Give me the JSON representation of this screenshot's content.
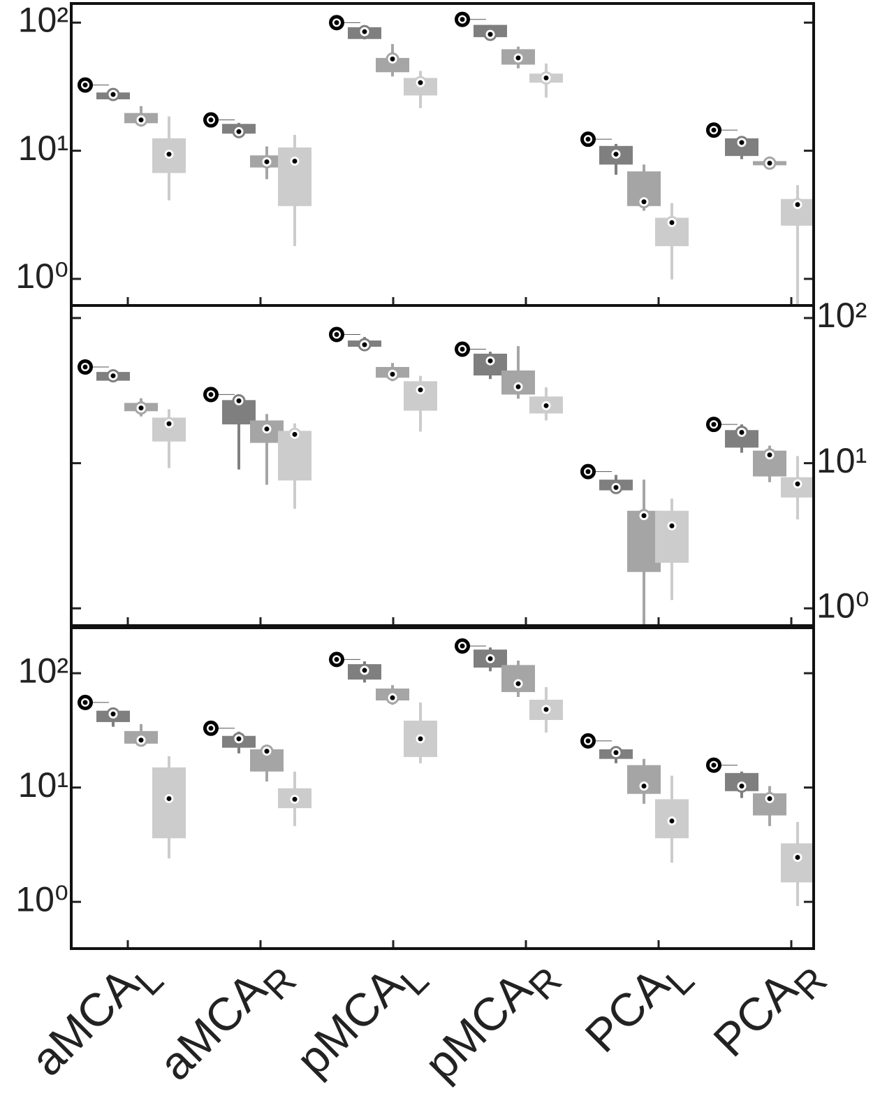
{
  "chart_data": [
    {
      "type": "box",
      "yscale": "log",
      "ylim": [
        0.62,
        141
      ],
      "yticks": [
        {
          "value": 1,
          "label": "10⁰"
        },
        {
          "value": 10,
          "label": "10¹"
        },
        {
          "value": 100,
          "label": "10²"
        }
      ],
      "yaxis_location": "left",
      "series": [
        {
          "color": "#000000",
          "values": [
            32.6,
            17.4,
            100,
            106,
            12.3,
            14.5
          ]
        },
        {
          "color": "#7f7f7f",
          "values": [
            {
              "min": 25,
              "q1": 25.2,
              "median": 27.5,
              "q3": 28.5,
              "max": 29
            },
            {
              "min": 13.5,
              "q1": 13.6,
              "median": 14.1,
              "q3": 16.2,
              "max": 16.5
            },
            {
              "min": 74,
              "q1": 74.5,
              "median": 85,
              "q3": 92,
              "max": 95
            },
            {
              "min": 77,
              "q1": 77,
              "median": 81,
              "q3": 96,
              "max": 96
            },
            {
              "min": 6.5,
              "q1": 7.8,
              "median": 9.4,
              "q3": 10.9,
              "max": 11.3
            },
            {
              "min": 8.6,
              "q1": 9.1,
              "median": 11.6,
              "q3": 12.5,
              "max": 12.9
            }
          ]
        },
        {
          "color": "#a5a5a5",
          "values": [
            {
              "min": 15.4,
              "q1": 16.4,
              "median": 17.4,
              "q3": 19.7,
              "max": 22.3
            },
            {
              "min": 6.0,
              "q1": 7.4,
              "median": 8.2,
              "q3": 9.2,
              "max": 10.8
            },
            {
              "min": 38,
              "q1": 41,
              "median": 52,
              "q3": 53,
              "max": 68
            },
            {
              "min": 44,
              "q1": 47,
              "median": 53,
              "q3": 62,
              "max": 65
            },
            {
              "min": 3.4,
              "q1": 3.7,
              "median": 4.0,
              "q3": 6.9,
              "max": 7.8
            },
            {
              "min": 7.7,
              "q1": 7.7,
              "median": 8.0,
              "q3": 8.3,
              "max": 8.3
            }
          ]
        },
        {
          "color": "#cccccc",
          "values": [
            {
              "min": 4.1,
              "q1": 6.7,
              "median": 9.4,
              "q3": 12.5,
              "max": 18.5
            },
            {
              "min": 1.8,
              "q1": 3.7,
              "median": 8.3,
              "q3": 10.6,
              "max": 13.3
            },
            {
              "min": 21.5,
              "q1": 27,
              "median": 34,
              "q3": 37,
              "max": 42
            },
            {
              "min": 26,
              "q1": 34,
              "median": 37,
              "q3": 40,
              "max": 48
            },
            {
              "min": 0.99,
              "q1": 1.8,
              "median": 2.75,
              "q3": 3.0,
              "max": 3.9
            },
            {
              "min": 0.4,
              "q1": 2.6,
              "median": 3.8,
              "q3": 4.2,
              "max": 5.4
            }
          ]
        }
      ]
    },
    {
      "type": "box",
      "yscale": "log",
      "ylim": [
        0.76,
        122
      ],
      "yticks": [
        {
          "value": 1,
          "label": "10⁰"
        },
        {
          "value": 10,
          "label": "10¹"
        },
        {
          "value": 100,
          "label": "10²"
        }
      ],
      "yaxis_location": "right",
      "series": [
        {
          "color": "#000000",
          "values": [
            46,
            29.7,
            77,
            61,
            8.75,
            18.5
          ]
        },
        {
          "color": "#7f7f7f",
          "values": [
            {
              "min": 37,
              "q1": 37,
              "median": 40,
              "q3": 42.5,
              "max": 42.5
            },
            {
              "min": 9.05,
              "q1": 18.5,
              "median": 26.9,
              "q3": 27.2,
              "max": 28.8
            },
            {
              "min": 59.3,
              "q1": 63.4,
              "median": 65.5,
              "q3": 70,
              "max": 74
            },
            {
              "min": 38,
              "q1": 40.2,
              "median": 50.7,
              "q3": 56.8,
              "max": 58.6
            },
            {
              "min": 6.2,
              "q1": 6.5,
              "median": 6.8,
              "q3": 7.7,
              "max": 8.3
            },
            {
              "min": 11.8,
              "q1": 12.8,
              "median": 16.3,
              "q3": 16.9,
              "max": 18.5
            }
          ]
        },
        {
          "color": "#a5a5a5",
          "values": [
            {
              "min": 21,
              "q1": 22.8,
              "median": 24,
              "q3": 26,
              "max": 28
            },
            {
              "min": 7.1,
              "q1": 13.8,
              "median": 17.2,
              "q3": 19.7,
              "max": 21.8
            },
            {
              "min": 36.7,
              "q1": 38.8,
              "median": 41,
              "q3": 46,
              "max": 49
            },
            {
              "min": 27.8,
              "q1": 29.7,
              "median": 33.6,
              "q3": 43.5,
              "max": 64
            },
            {
              "min": 0.5,
              "q1": 1.78,
              "median": 4.35,
              "q3": 4.7,
              "max": 7.7
            },
            {
              "min": 7.4,
              "q1": 8.1,
              "median": 11.4,
              "q3": 12.2,
              "max": 13.2
            }
          ]
        },
        {
          "color": "#cccccc",
          "values": [
            {
              "min": 9.25,
              "q1": 14.1,
              "median": 18.7,
              "q3": 20.6,
              "max": 23.5
            },
            {
              "min": 4.85,
              "q1": 7.6,
              "median": 15.8,
              "q3": 16.7,
              "max": 18.8
            },
            {
              "min": 16.5,
              "q1": 23,
              "median": 32,
              "q3": 36.7,
              "max": 40
            },
            {
              "min": 19.7,
              "q1": 22,
              "median": 24.9,
              "q3": 28.8,
              "max": 33.3
            },
            {
              "min": 1.14,
              "q1": 2.06,
              "median": 3.7,
              "q3": 4.7,
              "max": 5.7
            },
            {
              "min": 4.1,
              "q1": 5.8,
              "median": 7.2,
              "q3": 8.0,
              "max": 11.2
            }
          ]
        }
      ]
    },
    {
      "type": "box",
      "yscale": "log",
      "ylim": [
        0.39,
        250
      ],
      "yticks": [
        {
          "value": 1,
          "label": "10⁰"
        },
        {
          "value": 10,
          "label": "10¹"
        },
        {
          "value": 100,
          "label": "10²"
        }
      ],
      "yaxis_location": "left",
      "categories": [
        [
          "aMCA",
          "L"
        ],
        [
          "aMCA",
          "R"
        ],
        [
          "pMCA",
          "L"
        ],
        [
          "pMCA",
          "R"
        ],
        [
          "PCA",
          "L"
        ],
        [
          "PCA",
          "R"
        ]
      ],
      "series": [
        {
          "color": "#000000",
          "values": [
            55.5,
            33,
            132,
            173,
            25.6,
            15.7
          ]
        },
        {
          "color": "#7f7f7f",
          "values": [
            {
              "min": 34,
              "q1": 37.4,
              "median": 44,
              "q3": 47,
              "max": 49.5
            },
            {
              "min": 19.9,
              "q1": 22.3,
              "median": 26.7,
              "q3": 28.3,
              "max": 30.8
            },
            {
              "min": 83,
              "q1": 88,
              "median": 106,
              "q3": 120,
              "max": 127
            },
            {
              "min": 104,
              "q1": 112,
              "median": 134,
              "q3": 161,
              "max": 168
            },
            {
              "min": 16.3,
              "q1": 17.8,
              "median": 20.2,
              "q3": 21.6,
              "max": 22.9
            },
            {
              "min": 8.1,
              "q1": 9.3,
              "median": 10.3,
              "q3": 13.4,
              "max": 13.8
            }
          ]
        },
        {
          "color": "#a5a5a5",
          "values": [
            {
              "min": 23.5,
              "q1": 24.2,
              "median": 26,
              "q3": 31.2,
              "max": 35.9
            },
            {
              "min": 11.3,
              "q1": 13.8,
              "median": 20.8,
              "q3": 21.6,
              "max": 23.2
            },
            {
              "min": 53,
              "q1": 57.8,
              "median": 61,
              "q3": 73.5,
              "max": 78.7
            },
            {
              "min": 62,
              "q1": 68.4,
              "median": 81,
              "q3": 118,
              "max": 129
            },
            {
              "min": 7.2,
              "q1": 8.8,
              "median": 10.3,
              "q3": 15.7,
              "max": 17.8
            },
            {
              "min": 4.6,
              "q1": 5.7,
              "median": 8.0,
              "q3": 8.9,
              "max": 10.3
            }
          ]
        },
        {
          "color": "#cccccc",
          "values": [
            {
              "min": 2.4,
              "q1": 3.6,
              "median": 8.0,
              "q3": 15.0,
              "max": 18.8
            },
            {
              "min": 4.6,
              "q1": 6.6,
              "median": 7.9,
              "q3": 9.85,
              "max": 13.8
            },
            {
              "min": 16.3,
              "q1": 18.5,
              "median": 26.7,
              "q3": 38.5,
              "max": 55.5
            },
            {
              "min": 30.3,
              "q1": 39,
              "median": 48.2,
              "q3": 58.6,
              "max": 75.5
            },
            {
              "min": 2.2,
              "q1": 3.6,
              "median": 5.1,
              "q3": 7.9,
              "max": 12.7
            },
            {
              "min": 0.92,
              "q1": 1.48,
              "median": 2.45,
              "q3": 3.25,
              "max": 5.0
            }
          ]
        }
      ]
    }
  ]
}
